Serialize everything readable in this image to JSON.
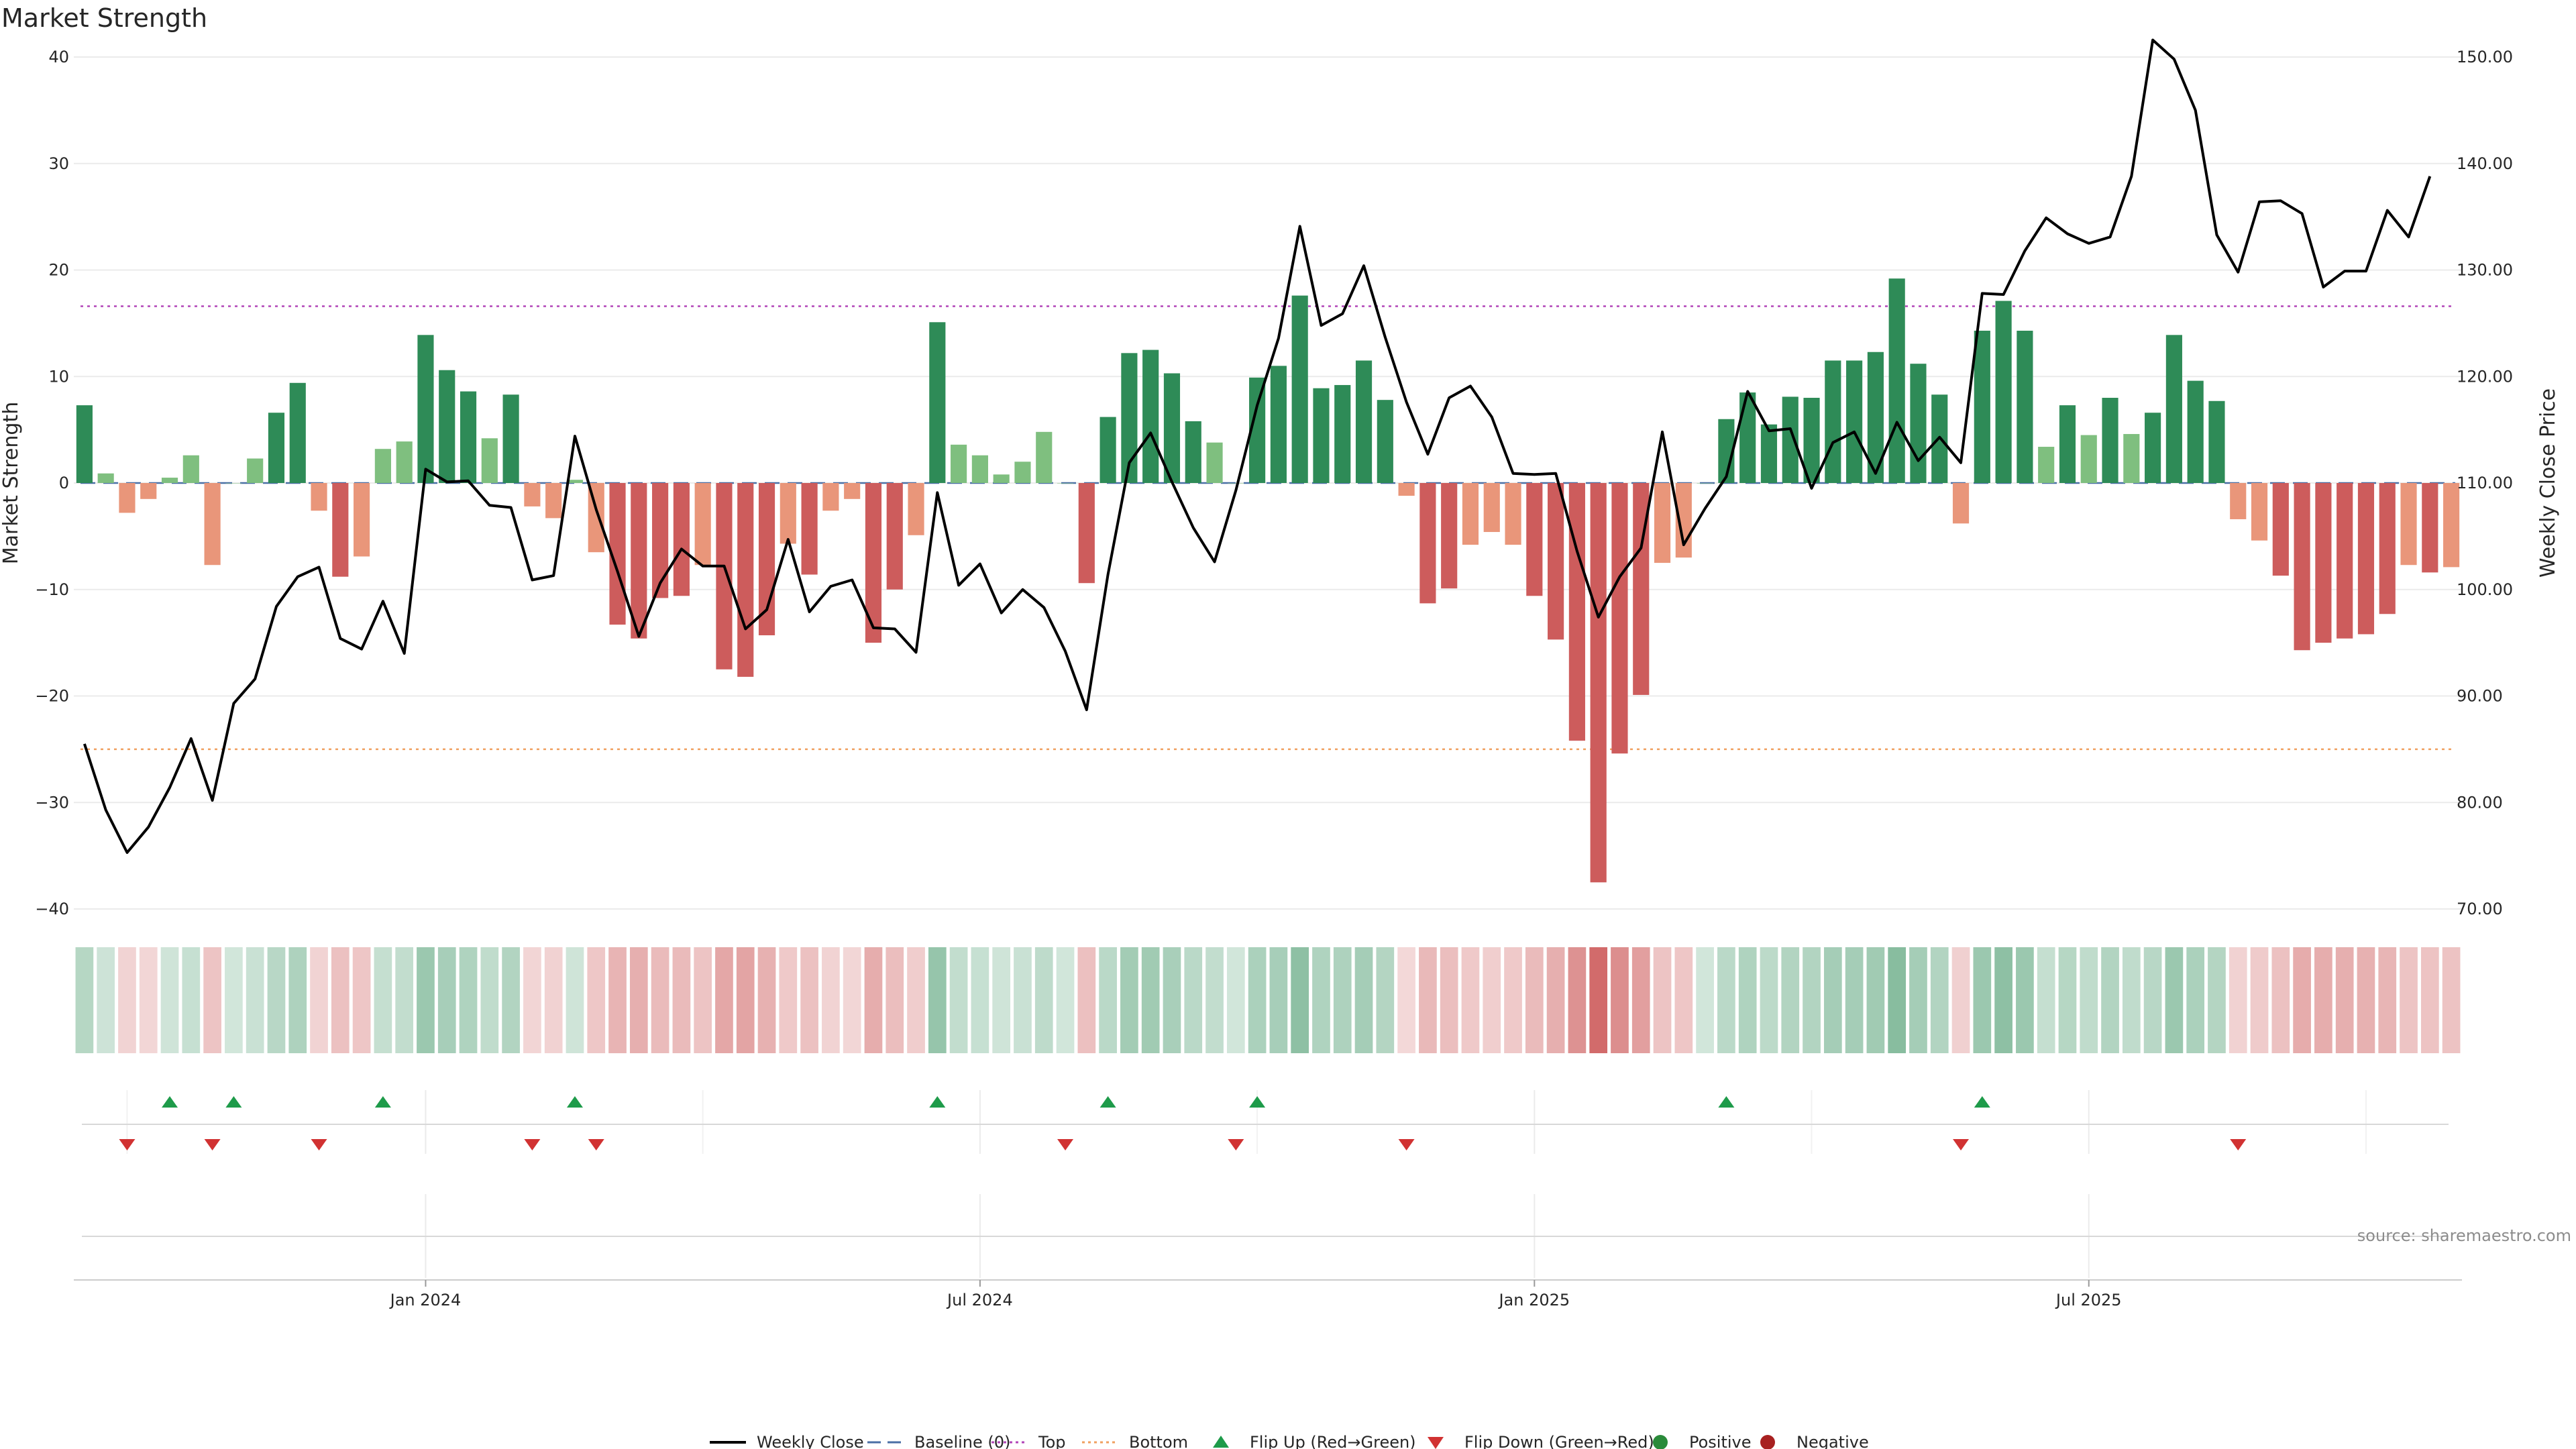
{
  "chart_data": {
    "type": "bar",
    "title": "Market Strength",
    "ylabel_left": "Market Strength",
    "ylabel_right": "Weekly Close Price",
    "ylim_left": [
      -40,
      40
    ],
    "ylim_right": [
      70,
      150
    ],
    "yticks_left": [
      "40",
      "30",
      "20",
      "10",
      "0",
      "−10",
      "−20",
      "−30",
      "−40"
    ],
    "yticks_right": [
      "150.00",
      "140.00",
      "130.00",
      "120.00",
      "110.00",
      "100.00",
      "90.00",
      "80.00",
      "70.00"
    ],
    "xticks": [
      "Jan 2024",
      "Jul 2024",
      "Jan 2025",
      "Jul 2025"
    ],
    "xtick_weeks": [
      16,
      42,
      68,
      94
    ],
    "top_level": 16.6,
    "bottom_level": -25,
    "strength": [
      7.3,
      0.9,
      -2.8,
      -1.5,
      0.5,
      2.6,
      -7.7,
      0,
      2.3,
      6.6,
      9.4,
      -2.6,
      -8.8,
      -6.9,
      3.2,
      3.9,
      13.9,
      10.6,
      8.6,
      4.2,
      8.3,
      -2.2,
      -3.3,
      0.3,
      -6.5,
      -13.3,
      -14.6,
      -10.8,
      -10.6,
      -7.7,
      -17.5,
      -18.2,
      -14.3,
      -5.7,
      -8.6,
      -2.6,
      -1.5,
      -15.0,
      -10.0,
      -4.9,
      15.1,
      3.6,
      2.6,
      0.8,
      2.0,
      4.8,
      0,
      -9.4,
      6.2,
      12.2,
      12.5,
      10.3,
      5.8,
      3.8,
      0,
      9.9,
      11.0,
      17.6,
      8.9,
      9.2,
      11.5,
      7.8,
      -1.2,
      -11.3,
      -9.9,
      -5.8,
      -4.6,
      -5.8,
      -10.6,
      -14.7,
      -24.2,
      -37.5,
      -25.4,
      -19.9,
      -7.5,
      -7.0,
      0,
      6.0,
      8.5,
      5.5,
      8.1,
      8.0,
      11.5,
      11.5,
      12.3,
      19.2,
      11.2,
      8.3,
      -3.8,
      14.3,
      17.1,
      14.3,
      3.4,
      7.3,
      4.5,
      8.0,
      4.6,
      6.6,
      13.9,
      9.6,
      7.7,
      -3.4,
      -5.4,
      -8.7,
      -15.7,
      -15.0,
      -14.6,
      -14.2,
      -12.3,
      -7.7,
      -8.4,
      -7.9
    ],
    "weekly_close": [
      85.5,
      79.3,
      75.3,
      77.7,
      81.4,
      86.0,
      80.2,
      89.3,
      91.6,
      98.4,
      101.2,
      102.1,
      95.4,
      94.4,
      98.9,
      94.0,
      111.3,
      110.1,
      110.2,
      107.9,
      107.7,
      100.9,
      101.3,
      114.4,
      107.5,
      101.7,
      95.6,
      100.6,
      103.8,
      102.2,
      102.2,
      96.3,
      98.1,
      104.7,
      97.9,
      100.3,
      100.9,
      96.4,
      96.3,
      94.1,
      109.1,
      100.4,
      102.4,
      97.8,
      100.0,
      98.3,
      94.2,
      88.7,
      101.4,
      111.9,
      114.7,
      110.1,
      105.8,
      102.6,
      109.3,
      117.3,
      123.6,
      134.1,
      124.8,
      125.9,
      130.4,
      123.7,
      117.6,
      112.7,
      118.0,
      119.1,
      116.2,
      110.9,
      110.8,
      110.9,
      103.6,
      97.4,
      101.2,
      103.9,
      114.8,
      104.2,
      107.6,
      110.6,
      118.6,
      114.9,
      115.1,
      109.5,
      113.8,
      114.8,
      110.9,
      115.7,
      112.1,
      114.3,
      111.9,
      127.8,
      127.7,
      131.8,
      134.9,
      133.4,
      132.5,
      133.1,
      138.8,
      151.6,
      149.8,
      145.0,
      133.3,
      129.8,
      136.4,
      136.5,
      135.3,
      128.4,
      129.9,
      129.9,
      135.6,
      133.1,
      138.8
    ],
    "flip_up_weeks": [
      4,
      7,
      14,
      23,
      40,
      48,
      55,
      77,
      89
    ],
    "flip_down_weeks": [
      2,
      6,
      11,
      21,
      24,
      46,
      54,
      62,
      88,
      101
    ],
    "legend": {
      "items": [
        {
          "key": "weekly_close",
          "label": "Weekly Close",
          "color": "#000000",
          "style": "line"
        },
        {
          "key": "baseline",
          "label": "Baseline (0)",
          "color": "#4a6fa5",
          "style": "dashed"
        },
        {
          "key": "top",
          "label": "Top",
          "color": "#b245b8",
          "style": "dotted"
        },
        {
          "key": "bottom",
          "label": "Bottom",
          "color": "#f0a060",
          "style": "dotted"
        },
        {
          "key": "flip_up",
          "label": "Flip Up (Red→Green)",
          "color": "#1e9b4a",
          "style": "triangle-up"
        },
        {
          "key": "flip_down",
          "label": "Flip Down (Green→Red)",
          "color": "#d13232",
          "style": "triangle-down"
        },
        {
          "key": "positive",
          "label": "Positive",
          "color": "#2a8a3a",
          "style": "circle"
        },
        {
          "key": "negative",
          "label": "Negative",
          "color": "#a82020",
          "style": "circle"
        }
      ],
      "placement": "bottom-center"
    },
    "grid": true
  },
  "colors": {
    "strong_positive": "#2e8b57",
    "weak_positive": "#7fbf7f",
    "strong_negative": "#cd5c5c",
    "weak_negative": "#e9967a",
    "price_line": "#000000"
  },
  "source_text": "source: sharemaestro.com"
}
